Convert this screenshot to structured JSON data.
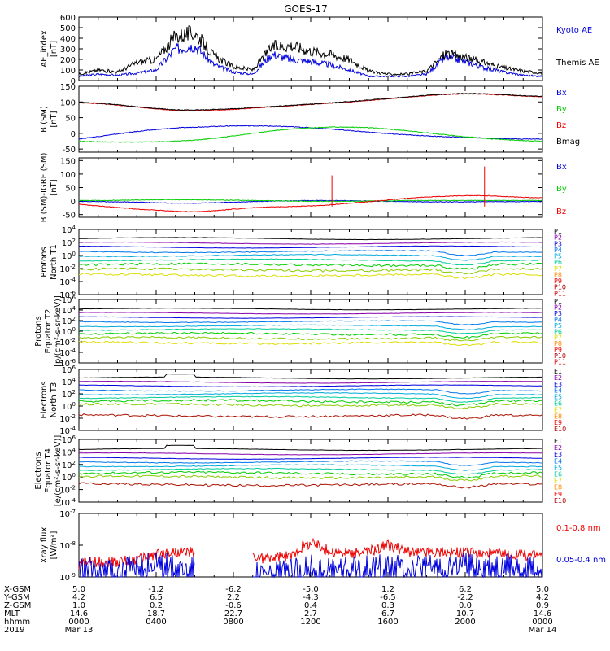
{
  "title": "GOES-17",
  "x_axis": {
    "row_labels": [
      "X-GSM",
      "Y-GSM",
      "Z-GSM",
      "MLT",
      "hhmm",
      "2019"
    ],
    "columns": [
      [
        "5.0",
        "4.2",
        "1.0",
        "14.6",
        "0000",
        "Mar 13"
      ],
      [
        "-1.2",
        "6.5",
        "0.2",
        "18.7",
        "0400",
        ""
      ],
      [
        "-6.2",
        "2.2",
        "-0.6",
        "22.7",
        "0800",
        ""
      ],
      [
        "-5.0",
        "-4.3",
        "0.4",
        "2.7",
        "1200",
        ""
      ],
      [
        "1.2",
        "-6.5",
        "0.3",
        "6.7",
        "1600",
        ""
      ],
      [
        "6.2",
        "-2.2",
        "0.0",
        "10.7",
        "2000",
        ""
      ],
      [
        "5.0",
        "4.2",
        "0.9",
        "14.6",
        "0000",
        "Mar 14"
      ]
    ]
  },
  "colors": {
    "black": "#000000",
    "blue": "#0000dd",
    "green": "#00cc00",
    "red": "#ee0000"
  },
  "chart_data": [
    {
      "type": "line",
      "ylabel": [
        "AE_index",
        "[nT]"
      ],
      "ylim": [
        0,
        600
      ],
      "yticks": [
        0,
        100,
        200,
        300,
        400,
        500,
        600
      ],
      "x": [
        0,
        1,
        2,
        3,
        4,
        5,
        6,
        7,
        8,
        9,
        10,
        11,
        12,
        13,
        14,
        15,
        16,
        17,
        18,
        19,
        20,
        21,
        22,
        23,
        24
      ],
      "series": [
        {
          "name": "Kyoto AE",
          "color": "#0000dd",
          "values": [
            40,
            60,
            50,
            70,
            100,
            300,
            330,
            150,
            80,
            60,
            250,
            200,
            180,
            150,
            100,
            40,
            40,
            40,
            60,
            220,
            180,
            120,
            80,
            50,
            40
          ]
        },
        {
          "name": "Themis AE",
          "color": "#000000",
          "values": [
            60,
            100,
            80,
            170,
            200,
            420,
            450,
            230,
            130,
            100,
            320,
            330,
            280,
            250,
            200,
            90,
            60,
            60,
            90,
            260,
            220,
            170,
            120,
            90,
            70
          ]
        }
      ]
    },
    {
      "type": "line",
      "ylabel": [
        "B (SM)",
        "[nT]"
      ],
      "ylim": [
        -60,
        150
      ],
      "yticks": [
        -50,
        0,
        50,
        100,
        150
      ],
      "x": [
        0,
        1,
        2,
        3,
        4,
        5,
        6,
        7,
        8,
        9,
        10,
        11,
        12,
        13,
        14,
        15,
        16,
        17,
        18,
        19,
        20,
        21,
        22,
        23,
        24
      ],
      "series": [
        {
          "name": "Bx",
          "color": "#0000dd",
          "values": [
            -18,
            -10,
            -2,
            6,
            12,
            17,
            20,
            22,
            24,
            24,
            23,
            21,
            18,
            14,
            9,
            4,
            -1,
            -5,
            -8,
            -11,
            -13,
            -15,
            -17,
            -18,
            -18
          ]
        },
        {
          "name": "By",
          "color": "#00cc00",
          "values": [
            -25,
            -27,
            -28,
            -28,
            -27,
            -25,
            -22,
            -16,
            -8,
            0,
            8,
            14,
            18,
            20,
            20,
            18,
            14,
            8,
            2,
            -5,
            -11,
            -16,
            -20,
            -23,
            -25
          ]
        },
        {
          "name": "Bz",
          "color": "#ee0000",
          "values": [
            98,
            95,
            90,
            84,
            78,
            73,
            72,
            74,
            76,
            80,
            84,
            88,
            92,
            96,
            100,
            105,
            110,
            115,
            120,
            124,
            126,
            125,
            122,
            119,
            116
          ]
        },
        {
          "name": "Bmag",
          "color": "#000000",
          "values": [
            99,
            96,
            91,
            85,
            79,
            75,
            74,
            76,
            78,
            82,
            86,
            89,
            93,
            97,
            101,
            106,
            111,
            116,
            121,
            125,
            127,
            126,
            123,
            120,
            117
          ]
        }
      ]
    },
    {
      "type": "line",
      "ylabel": [
        "B (SM)-IGRF (SM)",
        "[nT]"
      ],
      "ylim": [
        -60,
        160
      ],
      "yticks": [
        -50,
        0,
        50,
        100,
        150
      ],
      "x": [
        0,
        1,
        2,
        3,
        4,
        5,
        6,
        7,
        8,
        9,
        10,
        11,
        12,
        13,
        14,
        15,
        16,
        17,
        18,
        19,
        20,
        21,
        22,
        23,
        24
      ],
      "series": [
        {
          "name": "Bx",
          "color": "#0000dd",
          "values": [
            -2,
            -2,
            -3,
            -4,
            -6,
            -8,
            -8,
            -6,
            -4,
            -2,
            0,
            1,
            2,
            2,
            1,
            0,
            -1,
            -2,
            -3,
            -3,
            -3,
            -2,
            -2,
            -2,
            -2
          ]
        },
        {
          "name": "By",
          "color": "#00cc00",
          "values": [
            2,
            2,
            3,
            4,
            5,
            5,
            5,
            4,
            3,
            2,
            1,
            0,
            -1,
            -1,
            -1,
            0,
            1,
            2,
            2,
            2,
            2,
            2,
            2,
            2,
            2
          ]
        },
        {
          "name": "Bz",
          "color": "#ee0000",
          "values": [
            -12,
            -18,
            -24,
            -30,
            -34,
            -38,
            -40,
            -36,
            -30,
            -25,
            -22,
            -20,
            -18,
            -14,
            -8,
            -2,
            4,
            10,
            15,
            18,
            20,
            20,
            17,
            14,
            12
          ]
        }
      ]
    },
    {
      "type": "line",
      "log_y": true,
      "ylabel": [
        "Protons",
        "North T1"
      ],
      "ylim": [
        1e-06,
        10000.0
      ],
      "ytick_labels": [
        "10^4",
        "10^2",
        "10^0",
        "10^-2",
        "10^-4",
        "10^-6"
      ],
      "legend": [
        "P1",
        "P2",
        "P3",
        "P4",
        "P5",
        "P6",
        "P7",
        "P8",
        "P9",
        "P10",
        "P11"
      ],
      "channel_levels_log10": [
        2.6,
        1.9,
        1.3,
        0.6,
        0.0,
        -0.7,
        -1.4,
        -2.2,
        -3.0
      ]
    },
    {
      "type": "line",
      "log_y": true,
      "ylabel": [
        "Protons",
        "Equator T2",
        "[p/(cm²-s-sr-keV)]"
      ],
      "ylim": [
        1e-06,
        1000000.0
      ],
      "ytick_labels": [
        "10^6",
        "10^4",
        "10^2",
        "10^0",
        "10^-2",
        "10^-4",
        "10^-6"
      ],
      "legend": [
        "P1",
        "P2",
        "P3",
        "P4",
        "P5",
        "P6",
        "P7",
        "P8",
        "P9",
        "P10",
        "P11"
      ],
      "channel_levels_log10": [
        4.2,
        3.4,
        2.6,
        1.8,
        1.0,
        0.3,
        -0.5,
        -1.3,
        -2.2
      ]
    },
    {
      "type": "line",
      "log_y": true,
      "ylabel": [
        "Electrons",
        "North T3"
      ],
      "ylim": [
        0.0001,
        1000000.0
      ],
      "ytick_labels": [
        "10^6",
        "10^4",
        "10^2",
        "10^0",
        "10^-2",
        "10^-4"
      ],
      "legend": [
        "E1",
        "E2",
        "E3",
        "E4",
        "E5",
        "E6",
        "E7",
        "E8",
        "E9",
        "E10"
      ],
      "channel_levels_log10": [
        4.6,
        3.9,
        3.3,
        2.6,
        2.0,
        1.4,
        0.8,
        0.2,
        -1.6
      ]
    },
    {
      "type": "line",
      "log_y": true,
      "ylabel": [
        "Electrons",
        "Equator T4",
        "[e/(cm²-s-sr-keV)]"
      ],
      "ylim": [
        0.0001,
        1000000.0
      ],
      "ytick_labels": [
        "10^6",
        "10^4",
        "10^2",
        "10^0",
        "10^-2",
        "10^-4"
      ],
      "legend": [
        "E1",
        "E2",
        "E3",
        "E4",
        "E5",
        "E6",
        "E7",
        "E8",
        "E9",
        "E10"
      ],
      "channel_levels_log10": [
        4.4,
        3.7,
        3.0,
        2.4,
        1.8,
        1.2,
        0.6,
        0.0,
        -1.2
      ]
    },
    {
      "type": "line",
      "log_y": true,
      "ylabel": [
        "Xray flux",
        "[W/m²]"
      ],
      "ylim": [
        1e-09,
        1e-07
      ],
      "ytick_labels": [
        "10^-7",
        "10^-8",
        "10^-9"
      ],
      "x": [
        0,
        1,
        2,
        3,
        4,
        5,
        6,
        7,
        8,
        9,
        10,
        11,
        12,
        13,
        14,
        15,
        16,
        17,
        18,
        19,
        20,
        21,
        22,
        23,
        24
      ],
      "series": [
        {
          "name": "0.1-0.8 nm",
          "color": "#ee0000",
          "values": [
            2.5e-09,
            3e-09,
            3e-09,
            3.5e-09,
            5e-09,
            6e-09,
            6e-09,
            null,
            null,
            4e-09,
            4e-09,
            4.5e-09,
            1.2e-08,
            6e-09,
            5.5e-09,
            6e-09,
            1e-08,
            6e-09,
            6e-09,
            6e-09,
            6e-09,
            5.5e-09,
            5e-09,
            5e-09,
            5e-09
          ]
        },
        {
          "name": "0.05-0.4 nm",
          "color": "#0000dd",
          "values": [
            1.8e-09,
            1.5e-09,
            1.6e-09,
            1.8e-09,
            2.2e-09,
            2e-09,
            1.8e-09,
            null,
            null,
            1.2e-09,
            1.2e-09,
            1.3e-09,
            1.8e-09,
            1.5e-09,
            1.6e-09,
            1.8e-09,
            2e-09,
            1.8e-09,
            1.9e-09,
            2e-09,
            2.1e-09,
            2e-09,
            1.9e-09,
            1.8e-09,
            1.8e-09
          ]
        }
      ]
    }
  ]
}
